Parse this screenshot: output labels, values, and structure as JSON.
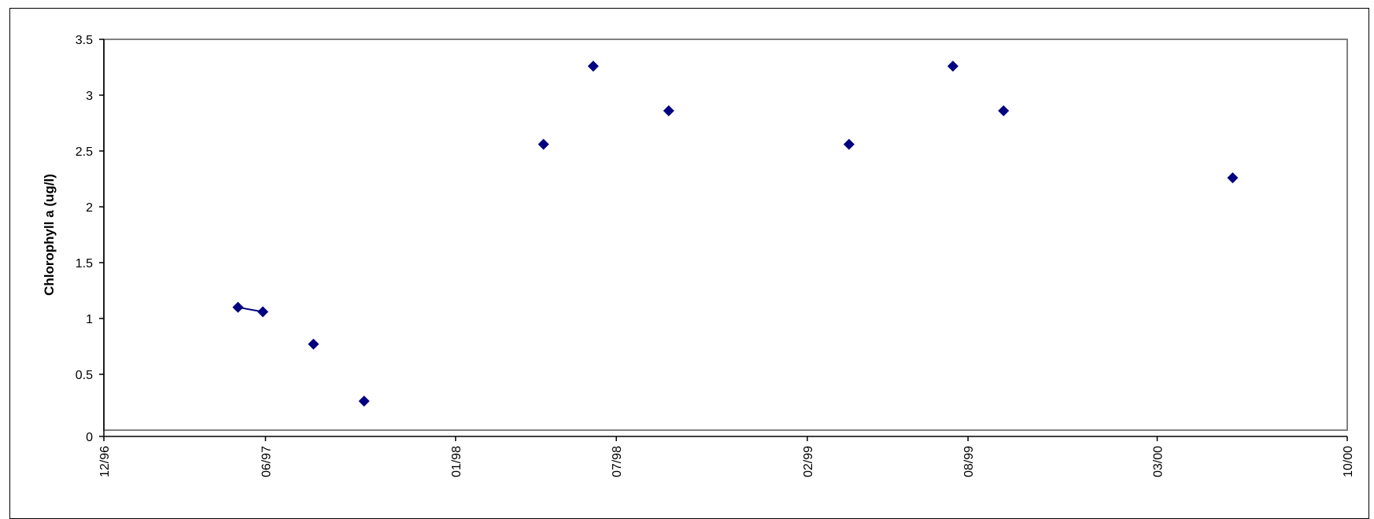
{
  "chart_data": {
    "type": "scatter",
    "title": "",
    "xlabel": "",
    "ylabel": "Chlorophyll a (ug/l)",
    "xlim": [
      "1996-12-01",
      "2000-10-01"
    ],
    "ylim": [
      0,
      3.5
    ],
    "x_ticks": [
      {
        "date": "1996-12-01",
        "label": "12/96"
      },
      {
        "date": "1997-06-01",
        "label": "06/97"
      },
      {
        "date": "1998-01-01",
        "label": "01/98"
      },
      {
        "date": "1998-07-01",
        "label": "07/98"
      },
      {
        "date": "1999-02-01",
        "label": "02/99"
      },
      {
        "date": "1999-08-01",
        "label": "08/99"
      },
      {
        "date": "2000-03-01",
        "label": "03/00"
      },
      {
        "date": "2000-10-01",
        "label": "10/00"
      }
    ],
    "y_ticks": [
      {
        "value": 0,
        "label": "0"
      },
      {
        "value": 0.5,
        "label": "0.5"
      },
      {
        "value": 1,
        "label": "1"
      },
      {
        "value": 1.5,
        "label": "1.5"
      },
      {
        "value": 2,
        "label": "2"
      },
      {
        "value": 2.5,
        "label": "2.5"
      },
      {
        "value": 3,
        "label": "3"
      },
      {
        "value": 3.5,
        "label": "3.5"
      }
    ],
    "grid": false,
    "series": [
      {
        "color": "#000080",
        "marker": "diamond",
        "points": [
          {
            "x": "1997-05-01",
            "y": 1.1
          },
          {
            "x": "1997-05-29",
            "y": 1.06
          },
          {
            "x": "1997-07-25",
            "y": 0.77
          },
          {
            "x": "1997-09-20",
            "y": 0.26
          },
          {
            "x": "1998-04-10",
            "y": 2.56
          },
          {
            "x": "1998-06-05",
            "y": 3.26
          },
          {
            "x": "1998-08-29",
            "y": 2.86
          },
          {
            "x": "1999-03-20",
            "y": 2.56
          },
          {
            "x": "1999-07-15",
            "y": 3.26
          },
          {
            "x": "1999-09-10",
            "y": 2.86
          },
          {
            "x": "2000-05-25",
            "y": 2.26
          }
        ],
        "connected_segments": [
          [
            0,
            1
          ]
        ]
      }
    ],
    "plot_area_fill": "#ffffff",
    "plot_area_border": "#808080"
  }
}
